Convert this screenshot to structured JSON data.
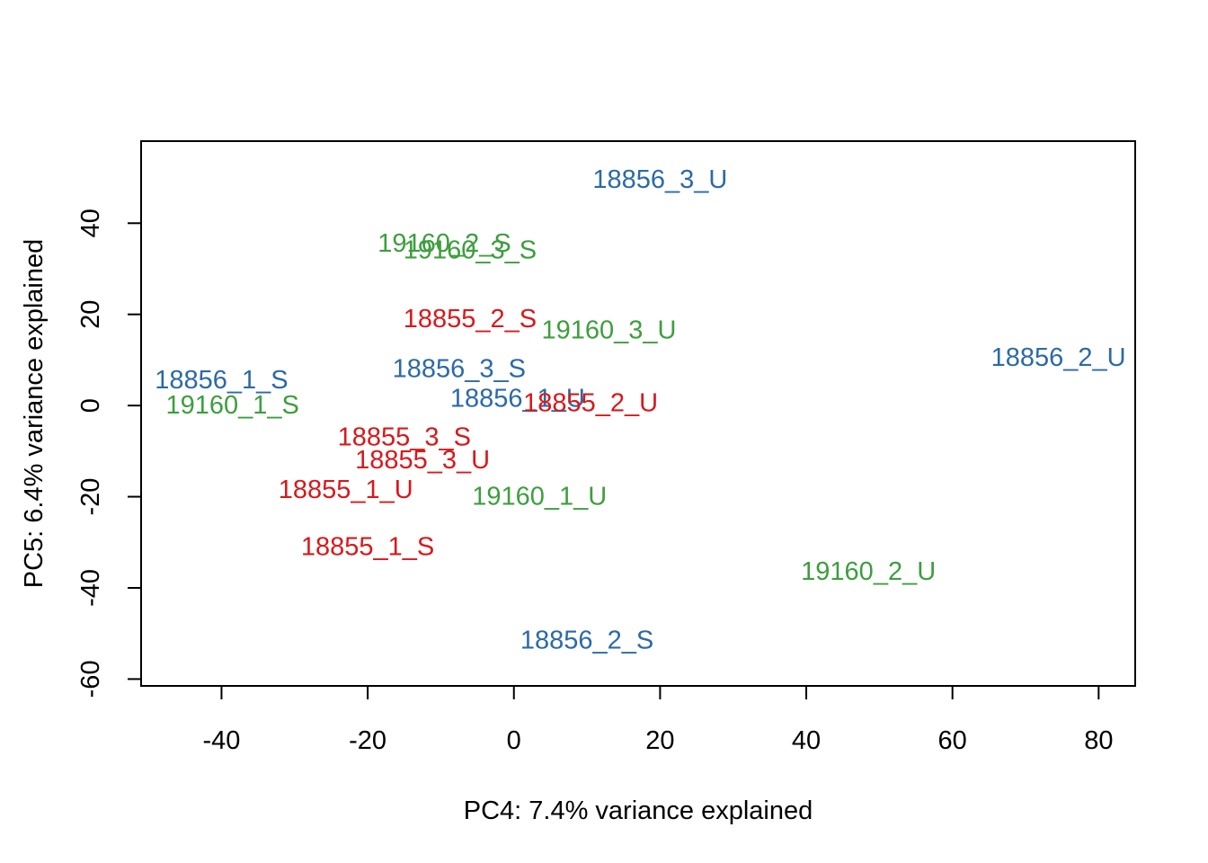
{
  "chart_data": {
    "type": "scatter",
    "title": "",
    "xlabel": "PC4: 7.4% variance explained",
    "ylabel": "PC5: 6.4% variance explained",
    "xlim": [
      -51,
      85
    ],
    "ylim": [
      -61.5,
      58
    ],
    "x_ticks": [
      -40,
      -20,
      0,
      20,
      40,
      60,
      80
    ],
    "y_ticks": [
      -60,
      -40,
      -20,
      0,
      20,
      40
    ],
    "grid": false,
    "legend": "none",
    "marker": "text-label",
    "groups": [
      {
        "id": "18855",
        "color": "#d7191c"
      },
      {
        "id": "18856",
        "color": "#2c6aa6"
      },
      {
        "id": "19160",
        "color": "#3e9e3e"
      }
    ],
    "points": [
      {
        "label": "18856_3_U",
        "x": 20.0,
        "y": 49.5,
        "group": "18856"
      },
      {
        "label": "19160_2_S",
        "x": -9.5,
        "y": 35.5,
        "group": "19160"
      },
      {
        "label": "19160_3_S",
        "x": -6.0,
        "y": 34.0,
        "group": "19160"
      },
      {
        "label": "18855_2_S",
        "x": -6.0,
        "y": 19.0,
        "group": "18855"
      },
      {
        "label": "19160_3_U",
        "x": 13.0,
        "y": 16.5,
        "group": "19160"
      },
      {
        "label": "18856_2_U",
        "x": 74.5,
        "y": 10.5,
        "group": "18856"
      },
      {
        "label": "18856_3_S",
        "x": -7.5,
        "y": 8.0,
        "group": "18856"
      },
      {
        "label": "18856_1_S",
        "x": -40.0,
        "y": 5.5,
        "group": "18856"
      },
      {
        "label": "18856_1_U",
        "x": 0.5,
        "y": 1.5,
        "group": "18856"
      },
      {
        "label": "18855_2_U",
        "x": 10.5,
        "y": 0.5,
        "group": "18855"
      },
      {
        "label": "19160_1_S",
        "x": -38.5,
        "y": 0.0,
        "group": "19160"
      },
      {
        "label": "18855_3_S",
        "x": -15.0,
        "y": -7.0,
        "group": "18855"
      },
      {
        "label": "18855_3_U",
        "x": -12.5,
        "y": -12.0,
        "group": "18855"
      },
      {
        "label": "18855_1_U",
        "x": -23.0,
        "y": -18.5,
        "group": "18855"
      },
      {
        "label": "19160_1_U",
        "x": 3.5,
        "y": -20.0,
        "group": "19160"
      },
      {
        "label": "18855_1_S",
        "x": -20.0,
        "y": -31.0,
        "group": "18855"
      },
      {
        "label": "19160_2_U",
        "x": 48.5,
        "y": -36.5,
        "group": "19160"
      },
      {
        "label": "18856_2_S",
        "x": 10.0,
        "y": -51.5,
        "group": "18856"
      }
    ]
  }
}
